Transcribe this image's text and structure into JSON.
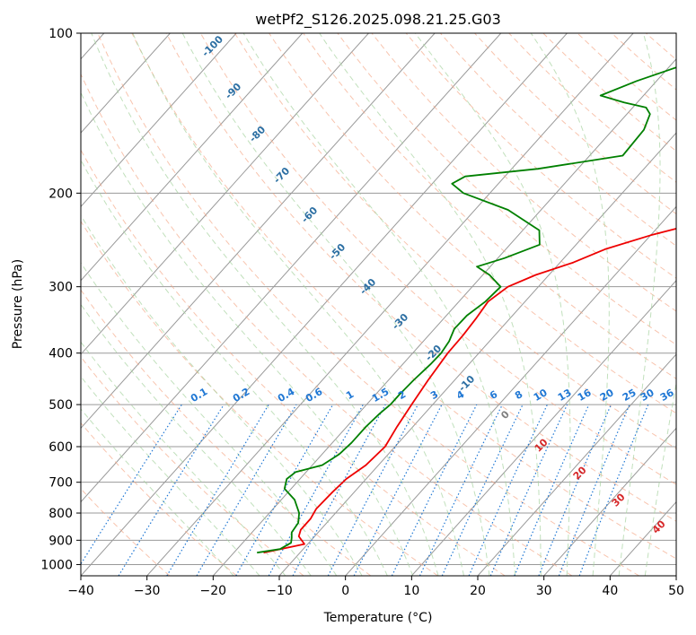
{
  "chart_data": {
    "type": "line",
    "title": "wetPf2_S126.2025.098.21.25.G03",
    "xlabel": "Temperature (°C)",
    "ylabel": "Pressure (hPa)",
    "xlim": [
      -40,
      50
    ],
    "ylim": [
      1050,
      100
    ],
    "y_scale": "log",
    "grid": true,
    "x_ticks": [
      "−40",
      "−30",
      "−20",
      "−10",
      "0",
      "10",
      "20",
      "30",
      "40",
      "50"
    ],
    "y_ticks": [
      "100",
      "200",
      "300",
      "400",
      "500",
      "600",
      "700",
      "800",
      "900",
      "1000"
    ],
    "series": [
      {
        "color": "#ee0000",
        "points": [
          [
            -15.5,
            950
          ],
          [
            -10.5,
            915
          ],
          [
            -12.4,
            885
          ],
          [
            -13.0,
            860
          ],
          [
            -13.0,
            820
          ],
          [
            -13.5,
            785
          ],
          [
            -13.3,
            730
          ],
          [
            -13.0,
            690
          ],
          [
            -11.9,
            650
          ],
          [
            -11.5,
            600
          ],
          [
            -12.4,
            550
          ],
          [
            -13.2,
            500
          ],
          [
            -14.0,
            450
          ],
          [
            -14.7,
            400
          ],
          [
            -14.8,
            370
          ],
          [
            -15.1,
            345
          ],
          [
            -15.6,
            320
          ],
          [
            -14.6,
            300
          ],
          [
            -12.0,
            285
          ],
          [
            -8.0,
            270
          ],
          [
            -5.0,
            255
          ],
          [
            0.0,
            240
          ],
          [
            9.0,
            220
          ],
          [
            13.5,
            205
          ],
          [
            16.0,
            190
          ],
          [
            19.0,
            175
          ],
          [
            25.0,
            160
          ],
          [
            32.0,
            145
          ],
          [
            37.0,
            132
          ],
          [
            38.9,
            123
          ],
          [
            38.6,
            110
          ],
          [
            38.9,
            100
          ]
        ]
      },
      {
        "color": "#008000",
        "points": [
          [
            -16.5,
            950
          ],
          [
            -13.5,
            935
          ],
          [
            -12.7,
            910
          ],
          [
            -13.3,
            890
          ],
          [
            -14.0,
            870
          ],
          [
            -14.3,
            835
          ],
          [
            -15.5,
            800
          ],
          [
            -18.0,
            755
          ],
          [
            -21.0,
            720
          ],
          [
            -22.0,
            690
          ],
          [
            -21.6,
            670
          ],
          [
            -18.5,
            650
          ],
          [
            -17.4,
            620
          ],
          [
            -17.1,
            590
          ],
          [
            -17.1,
            550
          ],
          [
            -16.8,
            520
          ],
          [
            -16.4,
            500
          ],
          [
            -16.4,
            480
          ],
          [
            -16.2,
            450
          ],
          [
            -15.8,
            420
          ],
          [
            -15.7,
            400
          ],
          [
            -16.1,
            380
          ],
          [
            -17.0,
            360
          ],
          [
            -16.9,
            340
          ],
          [
            -16.0,
            320
          ],
          [
            -15.7,
            300
          ],
          [
            -19.0,
            285
          ],
          [
            -22.0,
            275
          ],
          [
            -19.0,
            265
          ],
          [
            -15.5,
            250
          ],
          [
            -17.5,
            235
          ],
          [
            -25.0,
            215
          ],
          [
            -34.0,
            200
          ],
          [
            -37.0,
            192
          ],
          [
            -36.0,
            186
          ],
          [
            -26.0,
            180
          ],
          [
            -15.0,
            170
          ],
          [
            -15.3,
            152
          ],
          [
            -16.5,
            142
          ],
          [
            -18.0,
            138
          ],
          [
            -22.0,
            135
          ],
          [
            -26.5,
            131
          ],
          [
            -23.0,
            123
          ],
          [
            -17.0,
            113
          ],
          [
            -14.5,
            105
          ],
          [
            -8.5,
            101
          ],
          [
            -7.0,
            100
          ]
        ]
      }
    ],
    "isotherm_values": [
      -40,
      -30,
      -20,
      -10,
      0,
      10,
      20,
      30,
      40,
      50
    ],
    "dry_adiabat_labels": [
      "-100",
      "-90",
      "-80",
      "-70",
      "-60",
      "-50",
      "-40",
      "-30",
      "-20",
      "-10"
    ],
    "mixing_ratio_labels": [
      "0.1",
      "0.2",
      "0.4",
      "0.6",
      "1",
      "1.5",
      "2",
      "3",
      "4",
      "6",
      "8",
      "10",
      "13",
      "16",
      "20",
      "25",
      "30",
      "36"
    ],
    "moist_adiabat_labels": [
      "0",
      "10",
      "20",
      "30",
      "40"
    ],
    "colors": {
      "temperature": "#ee0000",
      "dewpoint": "#008000",
      "isotherm": "#999999",
      "dry_adiabat": "#f4a582",
      "moist_adiabat": "#a6d3a0",
      "mixing_ratio": "#1f77d4",
      "dry_label": "#2c6fa3",
      "moist_label": "#d62728"
    }
  }
}
